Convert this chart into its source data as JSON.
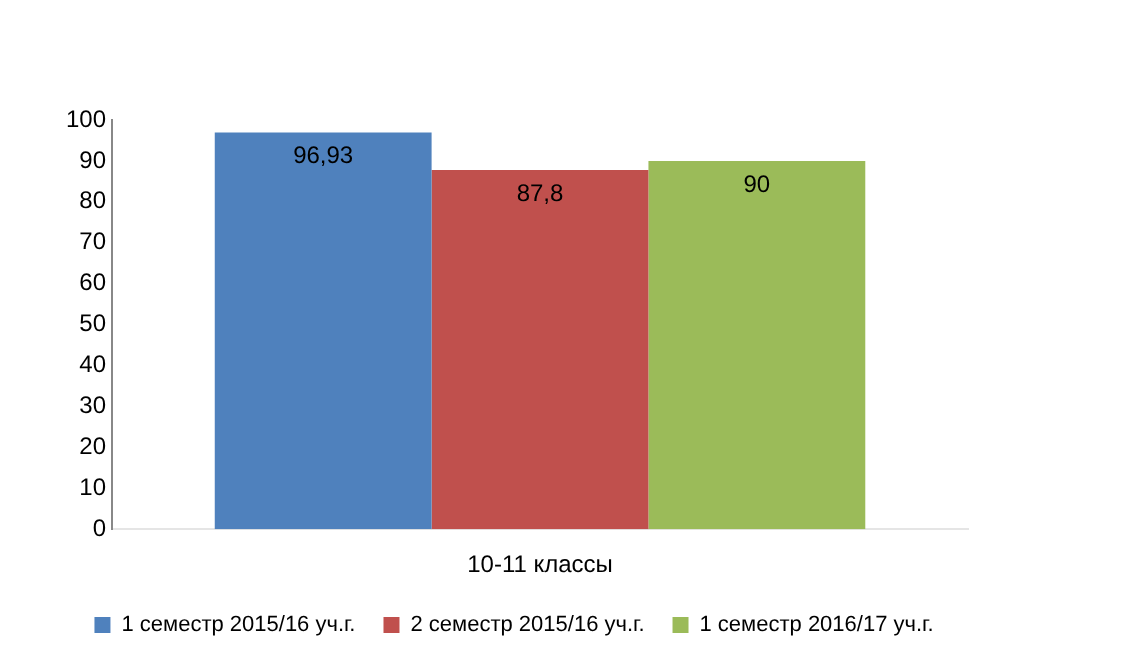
{
  "chart_data": {
    "type": "bar",
    "categories": [
      "10-11 классы"
    ],
    "series": [
      {
        "name": "1 семестр 2015/16 уч.г.",
        "color": "#4f81bd",
        "values": [
          96.93
        ],
        "value_labels": [
          "96,93"
        ]
      },
      {
        "name": "2 семестр 2015/16 уч.г.",
        "color": "#c0504d",
        "values": [
          87.8
        ],
        "value_labels": [
          "87,8"
        ]
      },
      {
        "name": "1 семестр 2016/17 уч.г.",
        "color": "#9bbb59",
        "values": [
          90
        ],
        "value_labels": [
          "90"
        ]
      }
    ],
    "ylim": [
      0,
      100
    ],
    "yticks": [
      0,
      10,
      20,
      30,
      40,
      50,
      60,
      70,
      80,
      90,
      100
    ],
    "grid": false,
    "legend": "bottom"
  }
}
